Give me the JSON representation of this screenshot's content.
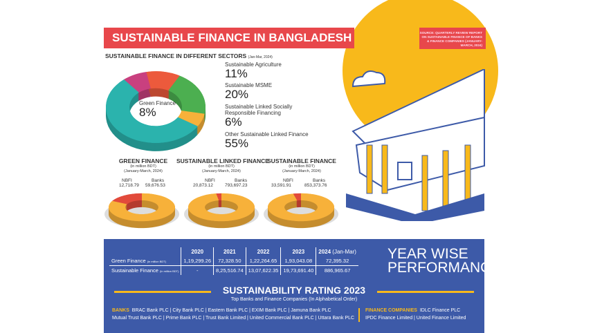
{
  "header": {
    "title": "SUSTAINABLE FINANCE IN BANGLADESH",
    "source": "SOURCE: QUARTERLY REVIEW REPORT ON SUSTAINABLE FINANCE OF BANKS & FINANCE COMPANIES (JANUARY-MARCH, 2024)"
  },
  "sectors": {
    "title": "SUSTAINABLE FINANCE IN DIFFERENT SECTORS",
    "period": "(Jan-Mar, 2024)"
  },
  "chart_data": [
    {
      "type": "pie",
      "title": "SUSTAINABLE FINANCE IN DIFFERENT SECTORS",
      "categories": [
        "Green Finance",
        "Sustainable Agriculture",
        "Sustainable MSME",
        "Sustainable Linked Socially Responsible Financing",
        "Other Sustainable Linked Finance"
      ],
      "values": [
        8,
        11,
        20,
        6,
        55
      ],
      "labels": [
        "8%",
        "11%",
        "20%",
        "6%",
        "55%"
      ],
      "colors": [
        "#C9407F",
        "#EC5A3C",
        "#4CAF50",
        "#F7B13A",
        "#2BB3AD"
      ]
    },
    {
      "type": "pie",
      "title": "GREEN FINANCE",
      "subtitle": "(in million BDT)",
      "period": "(January-March, 2024)",
      "categories": [
        "NBFI",
        "Banks"
      ],
      "values": [
        12718.79,
        59676.53
      ],
      "labels": [
        "12,718.79",
        "59,676.53"
      ]
    },
    {
      "type": "pie",
      "title": "SUSTAINABLE LINKED FINANCE",
      "subtitle": "(in million BDT)",
      "period": "(January-March, 2024)",
      "categories": [
        "NBFI",
        "Banks"
      ],
      "values": [
        20873.12,
        793697.23
      ],
      "labels": [
        "20,873.12",
        "793,697.23"
      ]
    },
    {
      "type": "pie",
      "title": "SUSTAINABLE FINANCE",
      "subtitle": "(in million BDT)",
      "period": "(January-March, 2024)",
      "categories": [
        "NBFI",
        "Banks"
      ],
      "values": [
        33591.91,
        853373.76
      ],
      "labels": [
        "33,591.91",
        "853,373.76"
      ]
    },
    {
      "type": "table",
      "title": "YEAR WISE PERFORMANCE",
      "columns": [
        "2020",
        "2021",
        "2022",
        "2023",
        "2024"
      ],
      "last_col_note": "(Jan-Mar)",
      "rows": [
        {
          "label": "Green Finance",
          "unit": "(in million BDT)",
          "values": [
            "1,19,299.26",
            "72,328.50",
            "1,22,264.65",
            "1,93,043.08",
            "72,395.32"
          ]
        },
        {
          "label": "Sustainable Finance",
          "unit": "(in million BDT)",
          "values": [
            "-",
            "8,25,516.74",
            "13,07,622.35",
            "19,73,691.40",
            "886,965.67"
          ]
        }
      ]
    }
  ],
  "performance": {
    "title1": "YEAR WISE",
    "title2": "PERFORMANCE"
  },
  "rating": {
    "title": "SUSTAINABILITY RATING 2023",
    "subtitle": "Top Banks and Finance Companies (In Alphabetical Order)",
    "banks_label": "BANKS",
    "banks_line1": "BRAC Bank PLC | City Bank PLC | Eastern Bank PLC | EXIM Bank PLC | Jamuna Bank PLC",
    "banks_line2": "Mutual Trust Bank PLC | Prime Bank PLC | Trust Bank Limited | United Commercial Bank PLC | Uttara Bank PLC",
    "fc_label": "FINANCE COMPANIES",
    "fc_line1": "IDLC Finance PLC",
    "fc_line2": "IPDC Finance Limited | United Finance Limited"
  }
}
